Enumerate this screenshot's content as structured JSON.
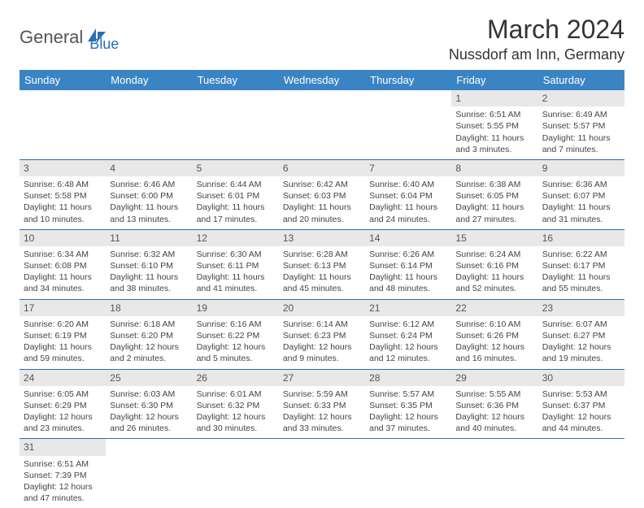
{
  "logo": {
    "part1": "General",
    "part2": "Blue"
  },
  "title": "March 2024",
  "location": "Nussdorf am Inn, Germany",
  "colors": {
    "header_bg": "#3b84c4",
    "header_text": "#ffffff",
    "daynum_bg": "#e8e8e8",
    "border": "#2a6fb5",
    "logo_accent": "#2a6fb5"
  },
  "weekdays": [
    "Sunday",
    "Monday",
    "Tuesday",
    "Wednesday",
    "Thursday",
    "Friday",
    "Saturday"
  ],
  "weeks": [
    [
      null,
      null,
      null,
      null,
      null,
      {
        "d": "1",
        "sr": "Sunrise: 6:51 AM",
        "ss": "Sunset: 5:55 PM",
        "dl1": "Daylight: 11 hours",
        "dl2": "and 3 minutes."
      },
      {
        "d": "2",
        "sr": "Sunrise: 6:49 AM",
        "ss": "Sunset: 5:57 PM",
        "dl1": "Daylight: 11 hours",
        "dl2": "and 7 minutes."
      }
    ],
    [
      {
        "d": "3",
        "sr": "Sunrise: 6:48 AM",
        "ss": "Sunset: 5:58 PM",
        "dl1": "Daylight: 11 hours",
        "dl2": "and 10 minutes."
      },
      {
        "d": "4",
        "sr": "Sunrise: 6:46 AM",
        "ss": "Sunset: 6:00 PM",
        "dl1": "Daylight: 11 hours",
        "dl2": "and 13 minutes."
      },
      {
        "d": "5",
        "sr": "Sunrise: 6:44 AM",
        "ss": "Sunset: 6:01 PM",
        "dl1": "Daylight: 11 hours",
        "dl2": "and 17 minutes."
      },
      {
        "d": "6",
        "sr": "Sunrise: 6:42 AM",
        "ss": "Sunset: 6:03 PM",
        "dl1": "Daylight: 11 hours",
        "dl2": "and 20 minutes."
      },
      {
        "d": "7",
        "sr": "Sunrise: 6:40 AM",
        "ss": "Sunset: 6:04 PM",
        "dl1": "Daylight: 11 hours",
        "dl2": "and 24 minutes."
      },
      {
        "d": "8",
        "sr": "Sunrise: 6:38 AM",
        "ss": "Sunset: 6:05 PM",
        "dl1": "Daylight: 11 hours",
        "dl2": "and 27 minutes."
      },
      {
        "d": "9",
        "sr": "Sunrise: 6:36 AM",
        "ss": "Sunset: 6:07 PM",
        "dl1": "Daylight: 11 hours",
        "dl2": "and 31 minutes."
      }
    ],
    [
      {
        "d": "10",
        "sr": "Sunrise: 6:34 AM",
        "ss": "Sunset: 6:08 PM",
        "dl1": "Daylight: 11 hours",
        "dl2": "and 34 minutes."
      },
      {
        "d": "11",
        "sr": "Sunrise: 6:32 AM",
        "ss": "Sunset: 6:10 PM",
        "dl1": "Daylight: 11 hours",
        "dl2": "and 38 minutes."
      },
      {
        "d": "12",
        "sr": "Sunrise: 6:30 AM",
        "ss": "Sunset: 6:11 PM",
        "dl1": "Daylight: 11 hours",
        "dl2": "and 41 minutes."
      },
      {
        "d": "13",
        "sr": "Sunrise: 6:28 AM",
        "ss": "Sunset: 6:13 PM",
        "dl1": "Daylight: 11 hours",
        "dl2": "and 45 minutes."
      },
      {
        "d": "14",
        "sr": "Sunrise: 6:26 AM",
        "ss": "Sunset: 6:14 PM",
        "dl1": "Daylight: 11 hours",
        "dl2": "and 48 minutes."
      },
      {
        "d": "15",
        "sr": "Sunrise: 6:24 AM",
        "ss": "Sunset: 6:16 PM",
        "dl1": "Daylight: 11 hours",
        "dl2": "and 52 minutes."
      },
      {
        "d": "16",
        "sr": "Sunrise: 6:22 AM",
        "ss": "Sunset: 6:17 PM",
        "dl1": "Daylight: 11 hours",
        "dl2": "and 55 minutes."
      }
    ],
    [
      {
        "d": "17",
        "sr": "Sunrise: 6:20 AM",
        "ss": "Sunset: 6:19 PM",
        "dl1": "Daylight: 11 hours",
        "dl2": "and 59 minutes."
      },
      {
        "d": "18",
        "sr": "Sunrise: 6:18 AM",
        "ss": "Sunset: 6:20 PM",
        "dl1": "Daylight: 12 hours",
        "dl2": "and 2 minutes."
      },
      {
        "d": "19",
        "sr": "Sunrise: 6:16 AM",
        "ss": "Sunset: 6:22 PM",
        "dl1": "Daylight: 12 hours",
        "dl2": "and 5 minutes."
      },
      {
        "d": "20",
        "sr": "Sunrise: 6:14 AM",
        "ss": "Sunset: 6:23 PM",
        "dl1": "Daylight: 12 hours",
        "dl2": "and 9 minutes."
      },
      {
        "d": "21",
        "sr": "Sunrise: 6:12 AM",
        "ss": "Sunset: 6:24 PM",
        "dl1": "Daylight: 12 hours",
        "dl2": "and 12 minutes."
      },
      {
        "d": "22",
        "sr": "Sunrise: 6:10 AM",
        "ss": "Sunset: 6:26 PM",
        "dl1": "Daylight: 12 hours",
        "dl2": "and 16 minutes."
      },
      {
        "d": "23",
        "sr": "Sunrise: 6:07 AM",
        "ss": "Sunset: 6:27 PM",
        "dl1": "Daylight: 12 hours",
        "dl2": "and 19 minutes."
      }
    ],
    [
      {
        "d": "24",
        "sr": "Sunrise: 6:05 AM",
        "ss": "Sunset: 6:29 PM",
        "dl1": "Daylight: 12 hours",
        "dl2": "and 23 minutes."
      },
      {
        "d": "25",
        "sr": "Sunrise: 6:03 AM",
        "ss": "Sunset: 6:30 PM",
        "dl1": "Daylight: 12 hours",
        "dl2": "and 26 minutes."
      },
      {
        "d": "26",
        "sr": "Sunrise: 6:01 AM",
        "ss": "Sunset: 6:32 PM",
        "dl1": "Daylight: 12 hours",
        "dl2": "and 30 minutes."
      },
      {
        "d": "27",
        "sr": "Sunrise: 5:59 AM",
        "ss": "Sunset: 6:33 PM",
        "dl1": "Daylight: 12 hours",
        "dl2": "and 33 minutes."
      },
      {
        "d": "28",
        "sr": "Sunrise: 5:57 AM",
        "ss": "Sunset: 6:35 PM",
        "dl1": "Daylight: 12 hours",
        "dl2": "and 37 minutes."
      },
      {
        "d": "29",
        "sr": "Sunrise: 5:55 AM",
        "ss": "Sunset: 6:36 PM",
        "dl1": "Daylight: 12 hours",
        "dl2": "and 40 minutes."
      },
      {
        "d": "30",
        "sr": "Sunrise: 5:53 AM",
        "ss": "Sunset: 6:37 PM",
        "dl1": "Daylight: 12 hours",
        "dl2": "and 44 minutes."
      }
    ],
    [
      {
        "d": "31",
        "sr": "Sunrise: 6:51 AM",
        "ss": "Sunset: 7:39 PM",
        "dl1": "Daylight: 12 hours",
        "dl2": "and 47 minutes."
      },
      null,
      null,
      null,
      null,
      null,
      null
    ]
  ]
}
